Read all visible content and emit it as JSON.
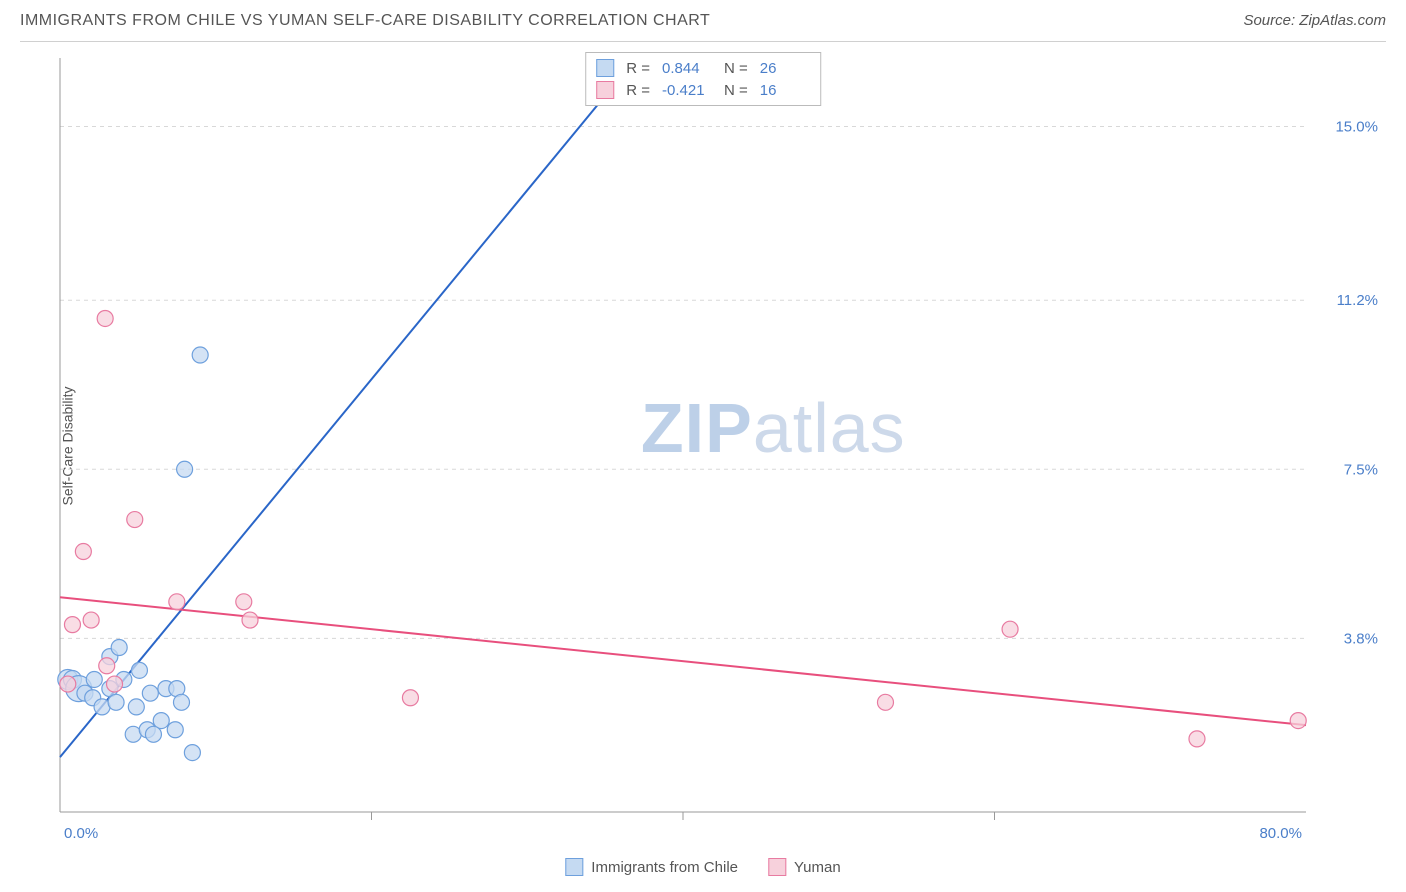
{
  "header": {
    "title": "IMMIGRANTS FROM CHILE VS YUMAN SELF-CARE DISABILITY CORRELATION CHART",
    "source": "Source: ZipAtlas.com"
  },
  "y_axis_label": "Self-Care Disability",
  "watermark": {
    "prefix": "ZIP",
    "suffix": "atlas"
  },
  "chart": {
    "type": "scatter",
    "background_color": "#ffffff",
    "grid_color": "#d8d8d8",
    "axis_line_color": "#999999",
    "tick_label_color": "#4a7ec9",
    "xlim": [
      0,
      80
    ],
    "ylim": [
      0,
      16.5
    ],
    "x_ticks": [
      {
        "value": 0,
        "label": "0.0%"
      },
      {
        "value": 80,
        "label": "80.0%"
      }
    ],
    "y_ticks": [
      {
        "value": 3.8,
        "label": "3.8%"
      },
      {
        "value": 7.5,
        "label": "7.5%"
      },
      {
        "value": 11.2,
        "label": "11.2%"
      },
      {
        "value": 15.0,
        "label": "15.0%"
      }
    ],
    "x_grid_minor": [
      20,
      40,
      60
    ],
    "series": [
      {
        "id": "chile",
        "name": "Immigrants from Chile",
        "marker_fill": "#c5daf2",
        "marker_stroke": "#6ea0dd",
        "marker_radius": 8,
        "line_color": "#2a66c8",
        "line_width": 2,
        "R": "0.844",
        "N": "26",
        "trendline": {
          "x1": 0,
          "y1": 1.2,
          "x2": 37,
          "y2": 16.5
        },
        "points": [
          {
            "x": 0.5,
            "y": 2.9,
            "r": 10
          },
          {
            "x": 0.8,
            "y": 2.9,
            "r": 9
          },
          {
            "x": 1.2,
            "y": 2.7,
            "r": 13
          },
          {
            "x": 1.6,
            "y": 2.6,
            "r": 8
          },
          {
            "x": 2.1,
            "y": 2.5,
            "r": 8
          },
          {
            "x": 2.2,
            "y": 2.9,
            "r": 8
          },
          {
            "x": 2.7,
            "y": 2.3,
            "r": 8
          },
          {
            "x": 3.2,
            "y": 2.7,
            "r": 8
          },
          {
            "x": 3.2,
            "y": 3.4,
            "r": 8
          },
          {
            "x": 3.6,
            "y": 2.4,
            "r": 8
          },
          {
            "x": 3.8,
            "y": 3.6,
            "r": 8
          },
          {
            "x": 4.1,
            "y": 2.9,
            "r": 8
          },
          {
            "x": 4.7,
            "y": 1.7,
            "r": 8
          },
          {
            "x": 4.9,
            "y": 2.3,
            "r": 8
          },
          {
            "x": 5.1,
            "y": 3.1,
            "r": 8
          },
          {
            "x": 5.6,
            "y": 1.8,
            "r": 8
          },
          {
            "x": 5.8,
            "y": 2.6,
            "r": 8
          },
          {
            "x": 6.5,
            "y": 2.0,
            "r": 8
          },
          {
            "x": 6.8,
            "y": 2.7,
            "r": 8
          },
          {
            "x": 7.4,
            "y": 1.8,
            "r": 8
          },
          {
            "x": 7.5,
            "y": 2.7,
            "r": 8
          },
          {
            "x": 7.8,
            "y": 2.4,
            "r": 8
          },
          {
            "x": 8.5,
            "y": 1.3,
            "r": 8
          },
          {
            "x": 8.0,
            "y": 7.5,
            "r": 8
          },
          {
            "x": 9.0,
            "y": 10.0,
            "r": 8
          },
          {
            "x": 6.0,
            "y": 1.7,
            "r": 8
          }
        ]
      },
      {
        "id": "yuman",
        "name": "Yuman",
        "marker_fill": "#f7d1dc",
        "marker_stroke": "#e87ba1",
        "marker_radius": 8,
        "line_color": "#e84f7d",
        "line_width": 2,
        "R": "-0.421",
        "N": "16",
        "trendline": {
          "x1": 0,
          "y1": 4.7,
          "x2": 80,
          "y2": 1.9
        },
        "points": [
          {
            "x": 0.5,
            "y": 2.8,
            "r": 8
          },
          {
            "x": 0.8,
            "y": 4.1,
            "r": 8
          },
          {
            "x": 1.5,
            "y": 5.7,
            "r": 8
          },
          {
            "x": 2.9,
            "y": 10.8,
            "r": 8
          },
          {
            "x": 2.0,
            "y": 4.2,
            "r": 8
          },
          {
            "x": 3.5,
            "y": 2.8,
            "r": 8
          },
          {
            "x": 4.8,
            "y": 6.4,
            "r": 8
          },
          {
            "x": 7.5,
            "y": 4.6,
            "r": 8
          },
          {
            "x": 3.0,
            "y": 3.2,
            "r": 8
          },
          {
            "x": 12.2,
            "y": 4.2,
            "r": 8
          },
          {
            "x": 11.8,
            "y": 4.6,
            "r": 8
          },
          {
            "x": 22.5,
            "y": 2.5,
            "r": 8
          },
          {
            "x": 53.0,
            "y": 2.4,
            "r": 8
          },
          {
            "x": 61.0,
            "y": 4.0,
            "r": 8
          },
          {
            "x": 73.0,
            "y": 1.6,
            "r": 8
          },
          {
            "x": 79.5,
            "y": 2.0,
            "r": 8
          }
        ]
      }
    ]
  },
  "legend_top_labels": {
    "R": "R =",
    "N": "N ="
  },
  "legend_bottom": [
    {
      "series": "chile"
    },
    {
      "series": "yuman"
    }
  ]
}
